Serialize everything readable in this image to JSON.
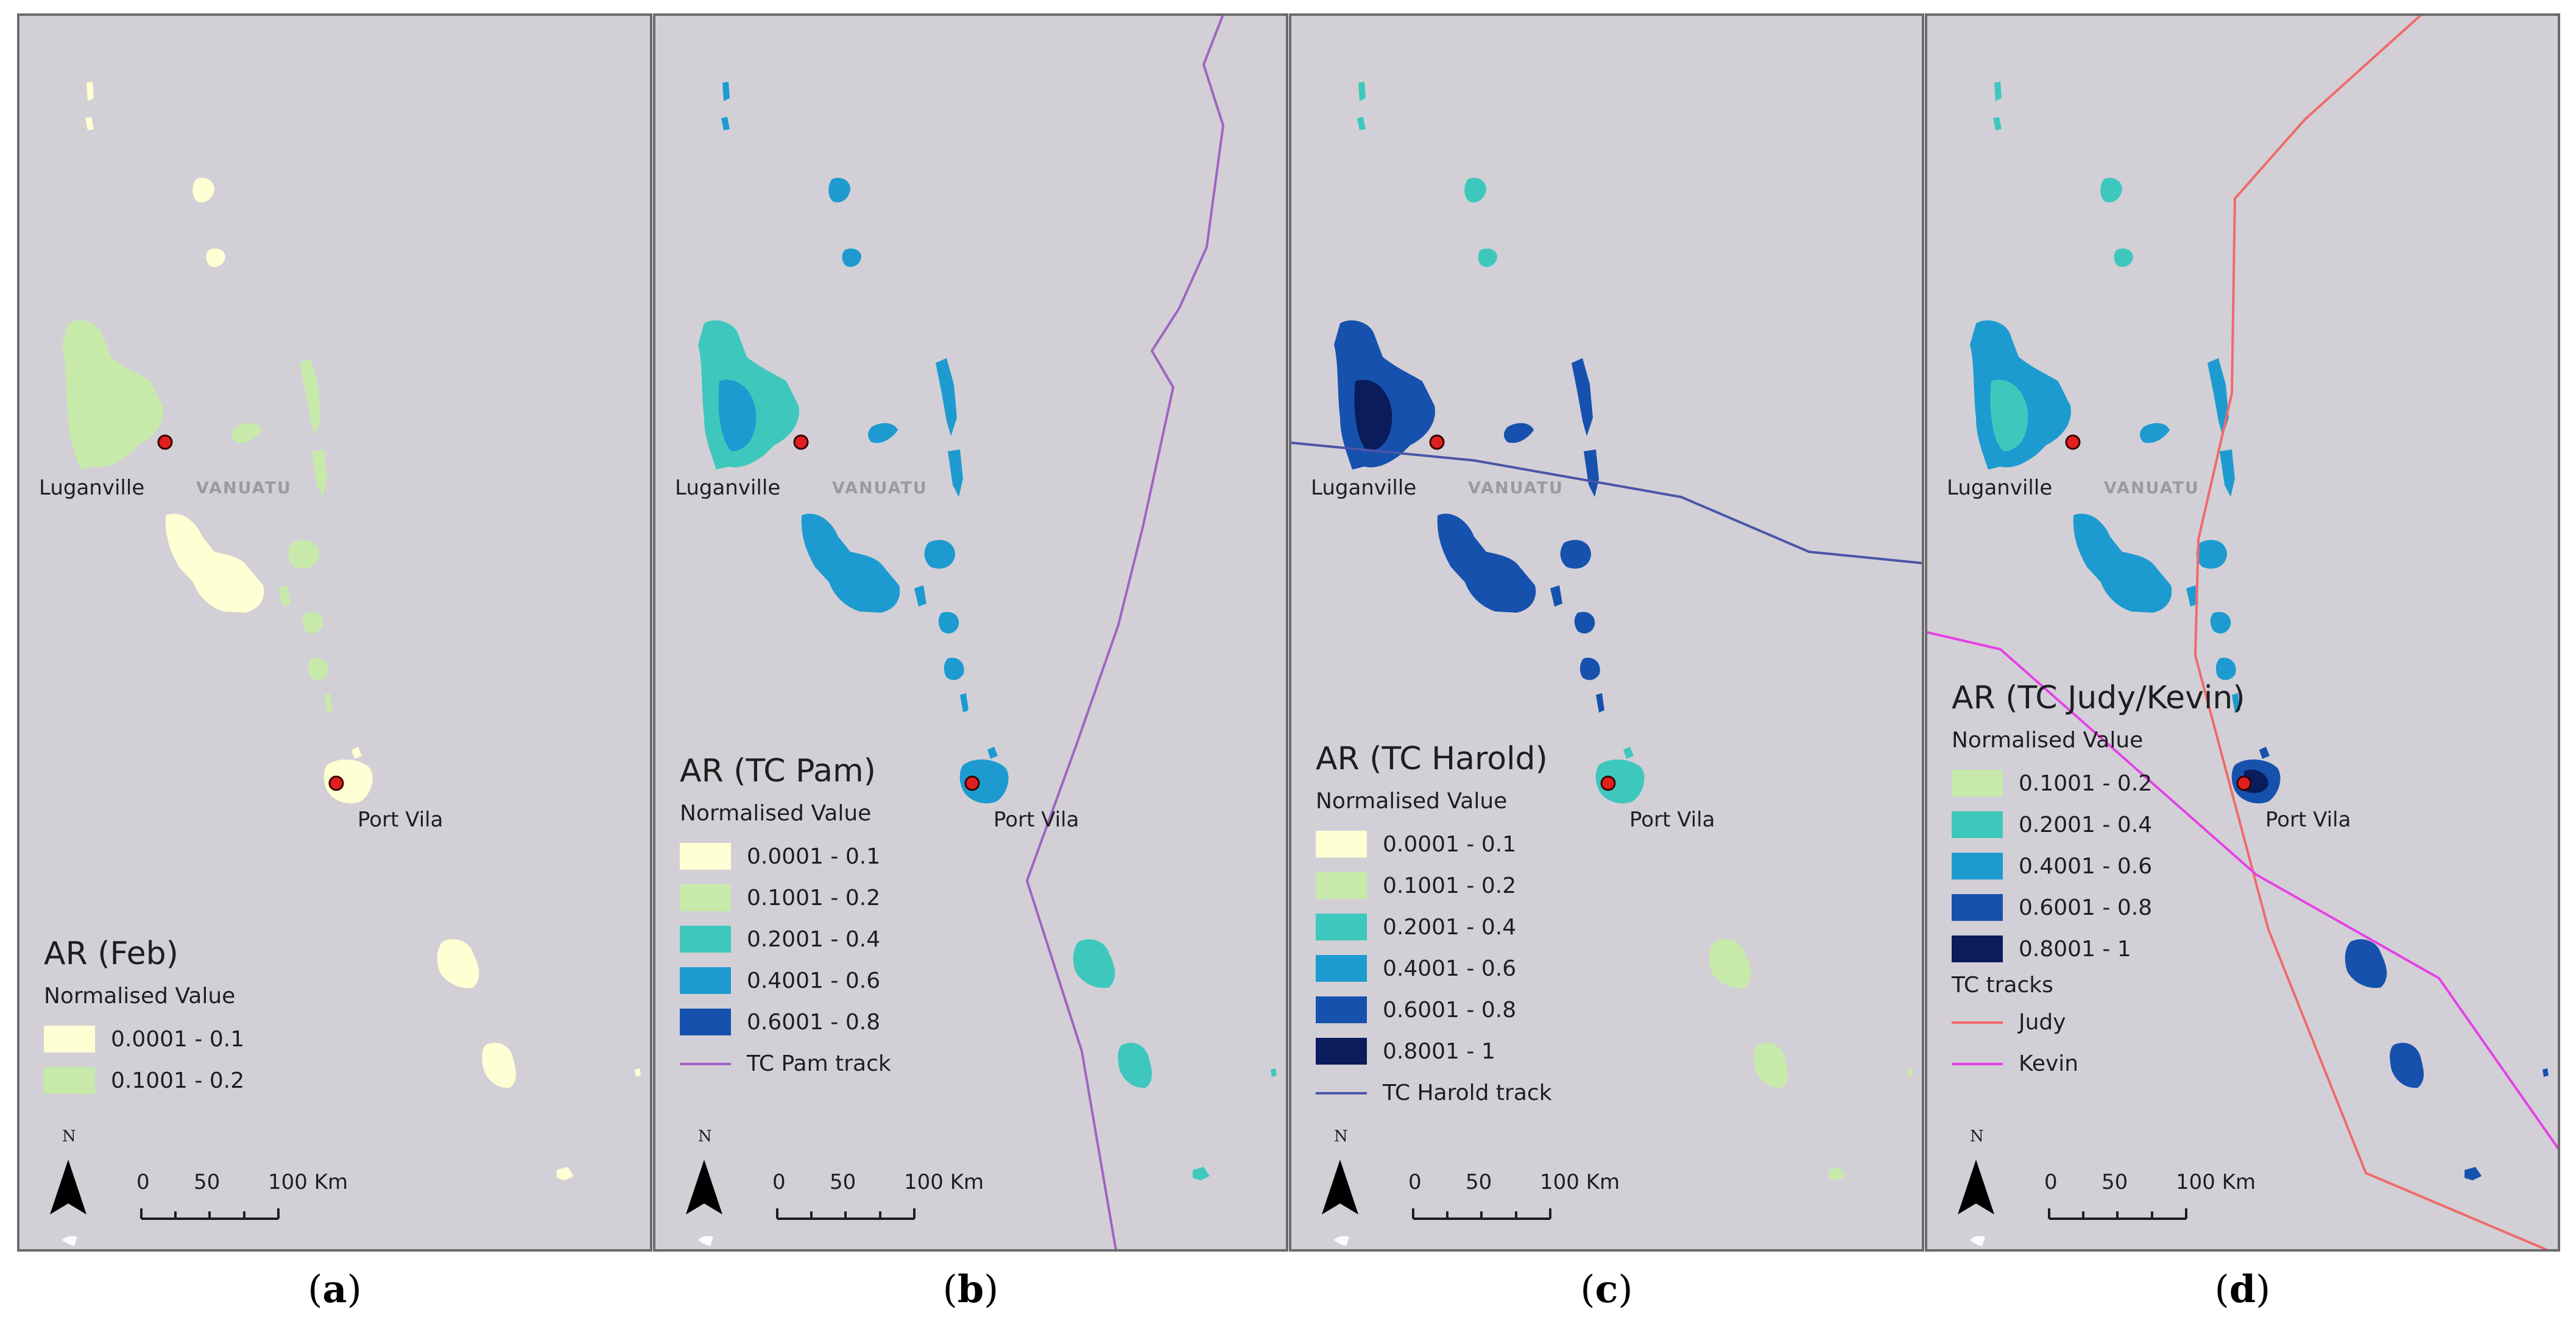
{
  "panels": [
    {
      "id": "a",
      "caption_letter": "a",
      "legend_title": "AR (Feb)",
      "legend_subtitle": "Normalised Value",
      "classes": [
        {
          "label": "0.0001 - 0.1",
          "color": "#ffffd4"
        },
        {
          "label": "0.1001 - 0.2",
          "color": "#c7eaaa"
        }
      ],
      "tracks_title": "",
      "tracks": [],
      "cities": [
        "Luganville",
        "Port Vila"
      ],
      "country": "VANUATU",
      "fills": {
        "espiritu": "#c7eaaa",
        "malakula": "#ffffd4",
        "north": "#ffffd4",
        "central": "#c7eaaa",
        "efate": "#ffffd4",
        "south": "#ffffd4"
      }
    },
    {
      "id": "b",
      "caption_letter": "b",
      "legend_title": "AR (TC Pam)",
      "legend_subtitle": "Normalised Value",
      "classes": [
        {
          "label": "0.0001 - 0.1",
          "color": "#ffffd4"
        },
        {
          "label": "0.1001 - 0.2",
          "color": "#c7eaaa"
        },
        {
          "label": "0.2001 - 0.4",
          "color": "#3ec8bd"
        },
        {
          "label": "0.4001 - 0.6",
          "color": "#1d9bd0"
        },
        {
          "label": "0.6001 - 0.8",
          "color": "#1651ad"
        }
      ],
      "tracks_title": "",
      "tracks": [
        {
          "label": "TC Pam track",
          "color": "#a064c4"
        }
      ],
      "cities": [
        "Luganville",
        "Port Vila"
      ],
      "country": "VANUATU",
      "fills": {
        "espiritu": "#3ec8bd",
        "malakula": "#1d9bd0",
        "north": "#1d9bd0",
        "central": "#1d9bd0",
        "efate": "#1d9bd0",
        "south": "#3ec8bd"
      }
    },
    {
      "id": "c",
      "caption_letter": "c",
      "legend_title": "AR (TC Harold)",
      "legend_subtitle": "Normalised Value",
      "classes": [
        {
          "label": "0.0001 - 0.1",
          "color": "#ffffd4"
        },
        {
          "label": "0.1001 - 0.2",
          "color": "#c7eaaa"
        },
        {
          "label": "0.2001 - 0.4",
          "color": "#3ec8bd"
        },
        {
          "label": "0.4001 - 0.6",
          "color": "#1d9bd0"
        },
        {
          "label": "0.6001 - 0.8",
          "color": "#1651ad"
        },
        {
          "label": "0.8001 - 1",
          "color": "#0a1c5c"
        }
      ],
      "tracks_title": "",
      "tracks": [
        {
          "label": "TC Harold track",
          "color": "#4a55a8"
        }
      ],
      "cities": [
        "Luganville",
        "Port Vila"
      ],
      "country": "VANUATU",
      "fills": {
        "espiritu": "#1651ad",
        "malakula": "#1651ad",
        "north": "#3ec8bd",
        "central": "#1651ad",
        "efate": "#3ec8bd",
        "south": "#c7eaaa"
      }
    },
    {
      "id": "d",
      "caption_letter": "d",
      "legend_title": "AR (TC Judy/Kevin)",
      "legend_subtitle": "Normalised Value",
      "classes": [
        {
          "label": "0.1001 - 0.2",
          "color": "#c7eaaa"
        },
        {
          "label": "0.2001 - 0.4",
          "color": "#3ec8bd"
        },
        {
          "label": "0.4001 - 0.6",
          "color": "#1d9bd0"
        },
        {
          "label": "0.6001 - 0.8",
          "color": "#1651ad"
        },
        {
          "label": "0.8001 - 1",
          "color": "#0a1c5c"
        }
      ],
      "tracks_title": "TC tracks",
      "tracks": [
        {
          "label": "Judy",
          "color": "#f06a6a"
        },
        {
          "label": "Kevin",
          "color": "#e640e6"
        }
      ],
      "cities": [
        "Luganville",
        "Port Vila"
      ],
      "country": "VANUATU",
      "fills": {
        "espiritu": "#1d9bd0",
        "malakula": "#1d9bd0",
        "north": "#3ec8bd",
        "central": "#1d9bd0",
        "efate": "#1651ad",
        "south": "#1651ad"
      }
    }
  ],
  "north_label": "N",
  "scale_labels": [
    "0",
    "50",
    "100 Km"
  ]
}
